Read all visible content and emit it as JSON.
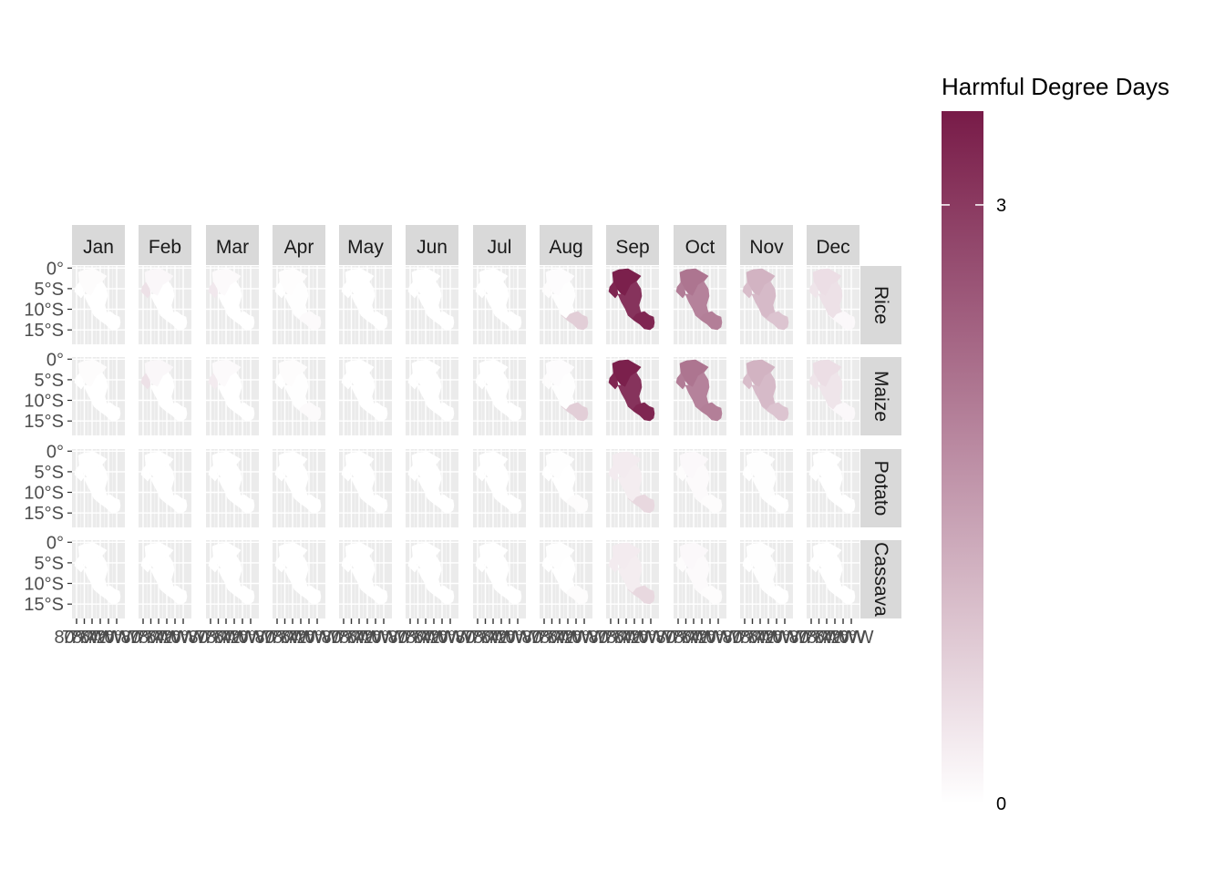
{
  "chart_data": {
    "type": "heatmap",
    "subtype": "faceted choropleth map",
    "title": "",
    "xlabel": "",
    "ylabel": "",
    "columns": [
      "Jan",
      "Feb",
      "Mar",
      "Apr",
      "May",
      "Jun",
      "Jul",
      "Aug",
      "Sep",
      "Oct",
      "Nov",
      "Dec"
    ],
    "rows": [
      "Rice",
      "Maize",
      "Potato",
      "Cassava"
    ],
    "y_ticks": [
      "0°",
      "5°S",
      "10°S",
      "15°S"
    ],
    "x_ticks_text": [
      "80°W",
      "78°W",
      "76°W",
      "74°W",
      "72°W",
      "70°W"
    ],
    "legend": {
      "title": "Harmful Degree Days",
      "min": 0,
      "max": 3.47,
      "ticks": [
        0,
        3
      ],
      "low_color": "#ffffff",
      "high_color": "#781b48",
      "position": "right"
    },
    "grid": true,
    "values": {
      "Rice": {
        "north": [
          0.05,
          0.12,
          0.08,
          0.03,
          0.0,
          0.0,
          0.0,
          0.04,
          3.4,
          2.1,
          1.15,
          0.5
        ],
        "coast": [
          0.0,
          0.45,
          0.35,
          0.0,
          0.0,
          0.0,
          0.0,
          0.05,
          3.3,
          2.0,
          1.0,
          0.4
        ],
        "central": [
          0.0,
          0.0,
          0.0,
          0.02,
          0.0,
          0.0,
          0.0,
          0.02,
          3.1,
          1.9,
          1.05,
          0.45
        ],
        "south": [
          0.0,
          0.0,
          0.0,
          0.08,
          0.0,
          0.0,
          0.0,
          0.75,
          3.3,
          1.95,
          0.9,
          0.1
        ]
      },
      "Maize": {
        "north": [
          0.05,
          0.12,
          0.08,
          0.05,
          0.0,
          0.0,
          0.0,
          0.04,
          3.4,
          2.1,
          1.15,
          0.5
        ],
        "coast": [
          0.0,
          0.45,
          0.3,
          0.0,
          0.0,
          0.0,
          0.0,
          0.05,
          3.3,
          2.0,
          1.0,
          0.4
        ],
        "central": [
          0.0,
          0.0,
          0.0,
          0.02,
          0.0,
          0.0,
          0.0,
          0.02,
          3.1,
          1.9,
          1.05,
          0.4
        ],
        "south": [
          0.0,
          0.0,
          0.0,
          0.08,
          0.0,
          0.0,
          0.0,
          0.75,
          3.3,
          1.95,
          0.9,
          0.1
        ]
      },
      "Potato": {
        "north": [
          0.0,
          0.0,
          0.0,
          0.0,
          0.0,
          0.0,
          0.0,
          0.02,
          0.3,
          0.1,
          0.02,
          0.0
        ],
        "coast": [
          0.0,
          0.0,
          0.0,
          0.0,
          0.0,
          0.0,
          0.0,
          0.0,
          0.3,
          0.05,
          0.0,
          0.0
        ],
        "central": [
          0.0,
          0.0,
          0.0,
          0.0,
          0.0,
          0.0,
          0.0,
          0.0,
          0.28,
          0.08,
          0.02,
          0.0
        ],
        "south": [
          0.0,
          0.0,
          0.0,
          0.0,
          0.0,
          0.0,
          0.0,
          0.05,
          0.6,
          0.05,
          0.0,
          0.0
        ]
      },
      "Cassava": {
        "north": [
          0.0,
          0.0,
          0.0,
          0.0,
          0.0,
          0.0,
          0.0,
          0.02,
          0.3,
          0.1,
          0.02,
          0.0
        ],
        "coast": [
          0.0,
          0.0,
          0.0,
          0.0,
          0.0,
          0.0,
          0.0,
          0.0,
          0.3,
          0.05,
          0.0,
          0.0
        ],
        "central": [
          0.0,
          0.0,
          0.0,
          0.0,
          0.0,
          0.0,
          0.0,
          0.0,
          0.28,
          0.08,
          0.02,
          0.0
        ],
        "south": [
          0.0,
          0.0,
          0.0,
          0.0,
          0.0,
          0.0,
          0.0,
          0.05,
          0.6,
          0.05,
          0.0,
          0.0
        ]
      }
    }
  }
}
